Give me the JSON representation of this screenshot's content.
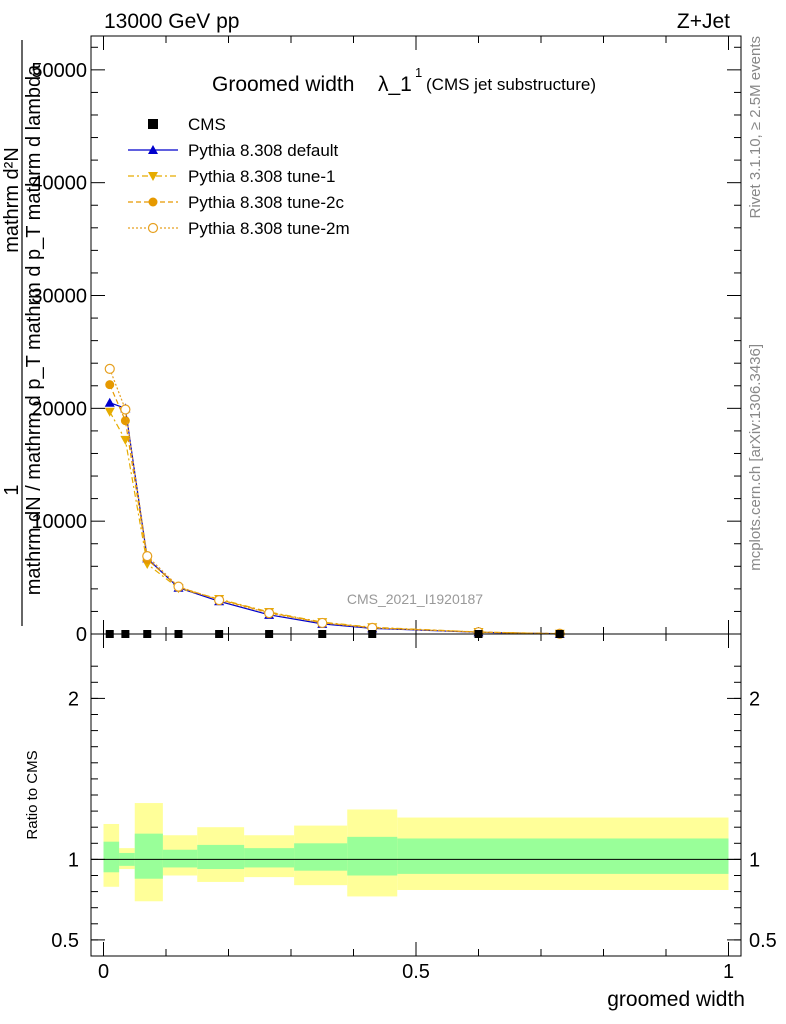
{
  "header": {
    "energy_label": "13000 GeV pp",
    "process_label": "Z+Jet",
    "side_rivet": "Rivet 3.1.10, ≥ 2.5M events",
    "side_mcplots": "mcplots.cern.ch [arXiv:1306.3436]"
  },
  "chart_data": [
    {
      "type": "line",
      "title_main": "Groomed width",
      "title_lambda": "λ_1",
      "title_sup": "1",
      "title_sub": "(CMS jet substructure)",
      "analysis_label": "CMS_2021_I1920187",
      "ylabel_numerator": "1",
      "ylabel_denominator": "mathrm dN / mathrm d p_T mathrm d p_T mathrm d lambda",
      "ylabel_top_numerator": "mathrm d²N",
      "xlim": [
        -0.02,
        1.02
      ],
      "ylim": [
        0,
        53000
      ],
      "y_ticks": [
        0,
        10000,
        20000,
        30000,
        40000,
        50000
      ],
      "y_tick_labels": [
        "0",
        "10000",
        "20000",
        "30000",
        "40000",
        "50000"
      ],
      "legend_placement": "top-left",
      "cms": {
        "name": "CMS",
        "x": [
          0.01,
          0.035,
          0.07,
          0.12,
          0.185,
          0.265,
          0.35,
          0.43,
          0.6,
          0.73
        ],
        "y": [
          0,
          0,
          0,
          0,
          0,
          0,
          0,
          0,
          0,
          0
        ]
      },
      "series": [
        {
          "name": "Pythia 8.308 default",
          "color": "#0000cc",
          "marker": "triangle-up",
          "x": [
            0.01,
            0.035,
            0.07,
            0.12,
            0.185,
            0.265,
            0.35,
            0.43,
            0.6,
            0.73
          ],
          "y": [
            20500,
            20000,
            6700,
            4100,
            2900,
            1700,
            900,
            500,
            150,
            20
          ]
        },
        {
          "name": "Pythia 8.308 tune-1",
          "color": "#e6ac00",
          "marker": "triangle-down",
          "x": [
            0.01,
            0.035,
            0.07,
            0.12,
            0.185,
            0.265,
            0.35,
            0.43,
            0.6,
            0.73
          ],
          "y": [
            19700,
            17200,
            6200,
            4050,
            3100,
            1950,
            1050,
            600,
            180,
            25
          ]
        },
        {
          "name": "Pythia 8.308 tune-2c",
          "color": "#e69900",
          "marker": "circle-filled",
          "x": [
            0.01,
            0.035,
            0.07,
            0.12,
            0.185,
            0.265,
            0.35,
            0.43,
            0.6,
            0.73
          ],
          "y": [
            22100,
            18900,
            6600,
            4150,
            3050,
            1900,
            1000,
            560,
            170,
            22
          ]
        },
        {
          "name": "Pythia 8.308 tune-2m",
          "color": "#e6a020",
          "marker": "circle-open",
          "x": [
            0.01,
            0.035,
            0.07,
            0.12,
            0.185,
            0.265,
            0.35,
            0.43,
            0.6,
            0.73
          ],
          "y": [
            23500,
            19900,
            6900,
            4200,
            3000,
            1850,
            980,
            540,
            160,
            21
          ]
        }
      ]
    },
    {
      "type": "area",
      "ylabel": "Ratio to CMS",
      "xlabel": "groomed width",
      "xlim": [
        -0.02,
        1.02
      ],
      "ylim": [
        0.4,
        2.4
      ],
      "y_ticks": [
        0.5,
        1,
        2
      ],
      "y_tick_labels": [
        "0.5",
        "1",
        "2"
      ],
      "x_ticks": [
        0,
        0.5,
        1
      ],
      "x_tick_labels": [
        "0",
        "0.5",
        "1"
      ],
      "reference_line": 1,
      "inner_band_color": "#99ff99",
      "outer_band_color": "#ffff99",
      "bins": [
        {
          "lo": 0.0,
          "hi": 0.025,
          "inner": [
            0.92,
            1.11
          ],
          "outer": [
            0.83,
            1.22
          ]
        },
        {
          "lo": 0.025,
          "hi": 0.05,
          "inner": [
            0.96,
            1.04
          ],
          "outer": [
            0.94,
            1.07
          ]
        },
        {
          "lo": 0.05,
          "hi": 0.095,
          "inner": [
            0.88,
            1.16
          ],
          "outer": [
            0.74,
            1.35
          ]
        },
        {
          "lo": 0.095,
          "hi": 0.15,
          "inner": [
            0.95,
            1.06
          ],
          "outer": [
            0.9,
            1.15
          ]
        },
        {
          "lo": 0.15,
          "hi": 0.225,
          "inner": [
            0.94,
            1.09
          ],
          "outer": [
            0.86,
            1.2
          ]
        },
        {
          "lo": 0.225,
          "hi": 0.305,
          "inner": [
            0.95,
            1.07
          ],
          "outer": [
            0.89,
            1.15
          ]
        },
        {
          "lo": 0.305,
          "hi": 0.39,
          "inner": [
            0.93,
            1.1
          ],
          "outer": [
            0.84,
            1.21
          ]
        },
        {
          "lo": 0.39,
          "hi": 0.47,
          "inner": [
            0.9,
            1.14
          ],
          "outer": [
            0.77,
            1.31
          ]
        },
        {
          "lo": 0.47,
          "hi": 1.0,
          "inner": [
            0.91,
            1.13
          ],
          "outer": [
            0.81,
            1.26
          ]
        }
      ]
    }
  ]
}
